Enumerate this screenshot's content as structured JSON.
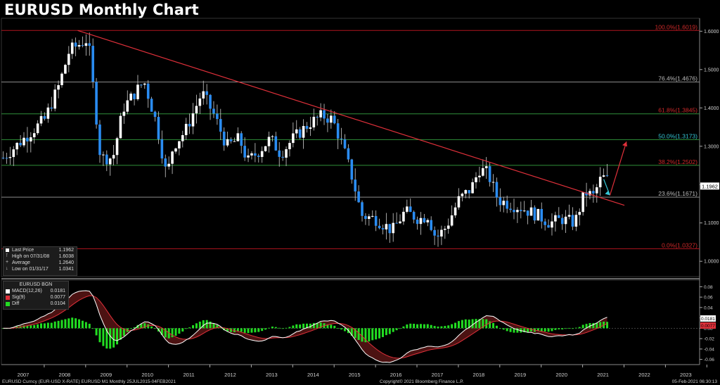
{
  "title": "EURUSD Monthly Chart",
  "legend": {
    "last_price_label": "Last Price",
    "last_price": "1.1962",
    "high_label": "High on 07/31/08",
    "high": "1.6038",
    "avg_label": "Average",
    "avg": "1.2640",
    "low_label": "Low on 01/31/17",
    "low": "1.0341"
  },
  "macd_legend": {
    "header": "EURUSD BGN",
    "macd_label": "MACD(12,26)",
    "macd": "0.0181",
    "sig_label": "Sig(9)",
    "sig": "0.0077",
    "diff_label": "Diff",
    "diff": "0.0104"
  },
  "footer": {
    "left": "EURUSD Curncy (EUR-USD X-RATE) EURUSD M1  Monthly 25JUL2015-04FEB2021",
    "center": "Copyright© 2021 Bloomberg Finance L.P.",
    "right": "05-Feb-2021 06:30:13"
  },
  "colors": {
    "background": "#000000",
    "candle_up": "#ffffff",
    "candle_down": "#2a8cf2",
    "trendline": "#e0303a",
    "fib_green": "#2f8f3a",
    "fib_grey": "#8a8a8a",
    "fib_red": "#b0151f",
    "macd": "#ffffff",
    "signal": "#e0303a",
    "diff": "#22dd22",
    "arrow_up": "#e0303a",
    "arrow_down": "#34c6d6"
  },
  "chart_data": {
    "type": "candlestick",
    "x_labels": [
      "2007",
      "2008",
      "2009",
      "2010",
      "2011",
      "2012",
      "2013",
      "2014",
      "2015",
      "2016",
      "2017",
      "2018",
      "2019",
      "2020",
      "2021",
      "2022",
      "2023"
    ],
    "y_ticks": [
      "1.6000",
      "1.5000",
      "1.4000",
      "1.3000",
      "1.2000",
      "1.1000",
      "1.0000"
    ],
    "ylim": [
      0.96,
      1.63
    ],
    "current_price": "1.1962",
    "fib_levels": [
      {
        "label": "100.0%(1.6019)",
        "value": 1.6019,
        "color": "#b0151f",
        "text_color": "#d02a2a"
      },
      {
        "label": "76.4%(1.4676)",
        "value": 1.4676,
        "color": "#8a8a8a",
        "text_color": "#bbbbbb"
      },
      {
        "label": "61.8%(1.3845)",
        "value": 1.3845,
        "color": "#2f8f3a",
        "text_color": "#d02a2a"
      },
      {
        "label": "50.0%(1.3173)",
        "value": 1.3173,
        "color": "#2f8f3a",
        "text_color": "#34c6d6"
      },
      {
        "label": "38.2%(1.2502)",
        "value": 1.2502,
        "color": "#2f8f3a",
        "text_color": "#d02a2a"
      },
      {
        "label": "23.6%(1.1671)",
        "value": 1.1671,
        "color": "#8a8a8a",
        "text_color": "#bbbbbb"
      },
      {
        "label": "0.0%(1.0327)",
        "value": 1.0327,
        "color": "#b0151f",
        "text_color": "#d02a2a"
      }
    ],
    "close_anchors": [
      [
        2006.5,
        1.27
      ],
      [
        2007.0,
        1.32
      ],
      [
        2007.5,
        1.37
      ],
      [
        2007.85,
        1.46
      ],
      [
        2008.1,
        1.55
      ],
      [
        2008.55,
        1.58
      ],
      [
        2008.85,
        1.27
      ],
      [
        2009.15,
        1.27
      ],
      [
        2009.4,
        1.4
      ],
      [
        2009.9,
        1.47
      ],
      [
        2010.2,
        1.36
      ],
      [
        2010.45,
        1.22
      ],
      [
        2010.6,
        1.3
      ],
      [
        2010.9,
        1.34
      ],
      [
        2011.3,
        1.44
      ],
      [
        2011.6,
        1.38
      ],
      [
        2011.9,
        1.3
      ],
      [
        2012.2,
        1.32
      ],
      [
        2012.4,
        1.26
      ],
      [
        2012.7,
        1.29
      ],
      [
        2012.95,
        1.32
      ],
      [
        2013.2,
        1.28
      ],
      [
        2013.5,
        1.32
      ],
      [
        2013.9,
        1.36
      ],
      [
        2014.2,
        1.38
      ],
      [
        2014.45,
        1.37
      ],
      [
        2014.7,
        1.3
      ],
      [
        2014.95,
        1.21
      ],
      [
        2015.15,
        1.12
      ],
      [
        2015.5,
        1.11
      ],
      [
        2015.9,
        1.08
      ],
      [
        2016.2,
        1.13
      ],
      [
        2016.55,
        1.11
      ],
      [
        2016.75,
        1.12
      ],
      [
        2016.95,
        1.06
      ],
      [
        2017.2,
        1.09
      ],
      [
        2017.5,
        1.16
      ],
      [
        2017.8,
        1.19
      ],
      [
        2018.0,
        1.24
      ],
      [
        2018.2,
        1.23
      ],
      [
        2018.45,
        1.16
      ],
      [
        2018.7,
        1.15
      ],
      [
        2019.0,
        1.14
      ],
      [
        2019.4,
        1.12
      ],
      [
        2019.7,
        1.1
      ],
      [
        2020.0,
        1.11
      ],
      [
        2020.3,
        1.1
      ],
      [
        2020.55,
        1.18
      ],
      [
        2020.75,
        1.17
      ],
      [
        2020.95,
        1.22
      ],
      [
        2021.1,
        1.2126
      ]
    ],
    "macd_ylim": [
      -0.07,
      0.09
    ],
    "macd_ticks": [
      "0.08",
      "0.06",
      "0.04",
      "0.02",
      "0.00",
      "-0.02",
      "-0.04",
      "-0.06"
    ],
    "macd_marker_values": [
      "0.0181",
      "0.0077"
    ],
    "trendline": {
      "from": [
        2008.3,
        1.6019
      ],
      "to": [
        2021.5,
        1.146
      ]
    },
    "projection_up": {
      "from": [
        2021.15,
        1.172
      ],
      "to": [
        2021.55,
        1.312
      ]
    }
  }
}
